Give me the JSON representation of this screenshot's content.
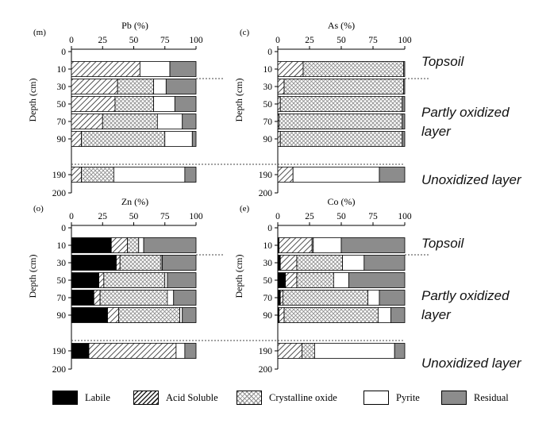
{
  "chart_data": [
    {
      "type": "bar",
      "orientation": "horizontal-stacked",
      "panel_label": "(m)",
      "title": "Pb (%)",
      "ylabel": "Depth (cm)",
      "xlim": [
        0,
        100
      ],
      "x_ticks": [
        "0",
        "25",
        "50",
        "75",
        "100"
      ],
      "ylim": [
        0,
        200
      ],
      "y_ticks": [
        "0",
        "10",
        "30",
        "50",
        "70",
        "90",
        "190",
        "200"
      ],
      "categories": [
        10,
        30,
        50,
        70,
        90,
        190
      ],
      "series": [
        {
          "name": "Labile",
          "values": [
            0,
            0,
            0,
            0,
            0,
            0
          ]
        },
        {
          "name": "Acid Soluble",
          "values": [
            55,
            37,
            35,
            25,
            8,
            8
          ]
        },
        {
          "name": "Crystalline oxide",
          "values": [
            0,
            29,
            31,
            44,
            67,
            26
          ]
        },
        {
          "name": "Pyrite",
          "values": [
            24,
            10,
            17,
            20,
            22,
            57
          ]
        },
        {
          "name": "Residual",
          "values": [
            21,
            24,
            17,
            11,
            3,
            9
          ]
        }
      ]
    },
    {
      "type": "bar",
      "orientation": "horizontal-stacked",
      "panel_label": "(c)",
      "title": "As (%)",
      "ylabel": "Depth (cm)",
      "xlim": [
        0,
        100
      ],
      "x_ticks": [
        "0",
        "25",
        "50",
        "75",
        "100"
      ],
      "ylim": [
        0,
        200
      ],
      "y_ticks": [
        "0",
        "10",
        "30",
        "50",
        "70",
        "90",
        "190",
        "200"
      ],
      "categories": [
        10,
        30,
        50,
        70,
        90,
        190
      ],
      "series": [
        {
          "name": "Labile",
          "values": [
            0,
            0,
            0,
            0,
            0,
            0
          ]
        },
        {
          "name": "Acid Soluble",
          "values": [
            20,
            5,
            2,
            1,
            2,
            12
          ]
        },
        {
          "name": "Crystalline oxide",
          "values": [
            79,
            94,
            96,
            97,
            96,
            0
          ]
        },
        {
          "name": "Pyrite",
          "values": [
            0,
            0,
            0,
            0,
            0,
            68
          ]
        },
        {
          "name": "Residual",
          "values": [
            1,
            1,
            2,
            2,
            2,
            20
          ]
        }
      ]
    },
    {
      "type": "bar",
      "orientation": "horizontal-stacked",
      "panel_label": "(o)",
      "title": "Zn (%)",
      "ylabel": "Depth (cm)",
      "xlim": [
        0,
        100
      ],
      "x_ticks": [
        "0",
        "25",
        "50",
        "75",
        "100"
      ],
      "ylim": [
        0,
        200
      ],
      "y_ticks": [
        "0",
        "10",
        "30",
        "50",
        "70",
        "90",
        "190",
        "200"
      ],
      "categories": [
        10,
        30,
        50,
        70,
        90,
        190
      ],
      "series": [
        {
          "name": "Labile",
          "values": [
            32,
            36,
            22,
            18,
            29,
            14
          ]
        },
        {
          "name": "Acid Soluble",
          "values": [
            13,
            3,
            4,
            5,
            9,
            70
          ]
        },
        {
          "name": "Crystalline oxide",
          "values": [
            9,
            33,
            49,
            54,
            49,
            0
          ]
        },
        {
          "name": "Pyrite",
          "values": [
            4,
            1,
            2,
            5,
            2,
            7
          ]
        },
        {
          "name": "Residual",
          "values": [
            42,
            27,
            23,
            18,
            11,
            9
          ]
        }
      ]
    },
    {
      "type": "bar",
      "orientation": "horizontal-stacked",
      "panel_label": "(e)",
      "title": "Co (%)",
      "ylabel": "Depth (cm)",
      "xlim": [
        0,
        100
      ],
      "x_ticks": [
        "0",
        "25",
        "50",
        "75",
        "100"
      ],
      "ylim": [
        0,
        200
      ],
      "y_ticks": [
        "0",
        "10",
        "30",
        "50",
        "70",
        "90",
        "190",
        "200"
      ],
      "categories": [
        10,
        30,
        50,
        70,
        90,
        190
      ],
      "series": [
        {
          "name": "Labile",
          "values": [
            1,
            2,
            6,
            2,
            1,
            0
          ]
        },
        {
          "name": "Acid Soluble",
          "values": [
            26,
            13,
            9,
            2,
            4,
            19
          ]
        },
        {
          "name": "Crystalline oxide",
          "values": [
            1,
            36,
            29,
            67,
            74,
            10
          ]
        },
        {
          "name": "Pyrite",
          "values": [
            22,
            17,
            12,
            9,
            10,
            63
          ]
        },
        {
          "name": "Residual",
          "values": [
            50,
            32,
            44,
            20,
            11,
            8
          ]
        }
      ]
    }
  ],
  "zone_labels": [
    "Topsoil",
    "Partly oxidized layer",
    "Unoxidized layer",
    "Topsoil",
    "Partly oxidized layer",
    "Unoxidized layer"
  ],
  "legend": [
    {
      "label": "Labile",
      "color": "#000000"
    },
    {
      "label": "Acid Soluble",
      "color": "hatched"
    },
    {
      "label": "Crystalline oxide",
      "color": "crosshatched"
    },
    {
      "label": "Pyrite",
      "color": "#ffffff"
    },
    {
      "label": "Residual",
      "color": "#8c8c8c"
    }
  ]
}
